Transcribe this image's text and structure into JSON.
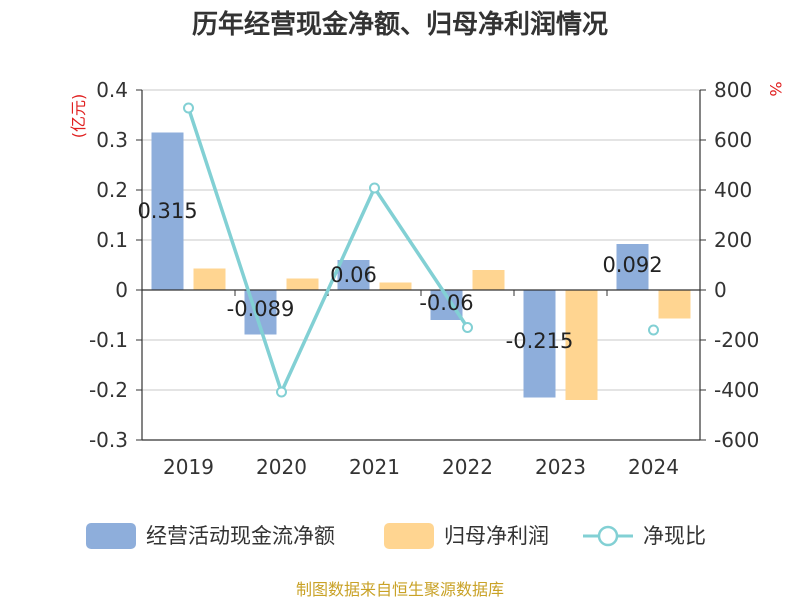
{
  "chart_data": {
    "type": "bar",
    "title": "历年经营现金净额、归母净利润情况",
    "categories": [
      "2019",
      "2020",
      "2021",
      "2022",
      "2023",
      "2024"
    ],
    "left_axis": {
      "unit": "(亿元)",
      "ylim": [
        -0.3,
        0.4
      ],
      "ticks": [
        "0.4",
        "0.3",
        "0.2",
        "0.1",
        "0",
        "-0.1",
        "-0.2",
        "-0.3"
      ],
      "tick_values": [
        0.4,
        0.3,
        0.2,
        0.1,
        0,
        -0.1,
        -0.2,
        -0.3
      ]
    },
    "right_axis": {
      "unit": "%",
      "ylim": [
        -600,
        800
      ],
      "ticks": [
        "800",
        "600",
        "400",
        "200",
        "0",
        "-200",
        "-400",
        "-600"
      ],
      "tick_values": [
        800,
        600,
        400,
        200,
        0,
        -200,
        -400,
        -600
      ]
    },
    "series": [
      {
        "name": "经营活动现金流净额",
        "kind": "bar",
        "axis": "left",
        "color": "#8eaedb",
        "values": [
          0.315,
          -0.089,
          0.06,
          -0.06,
          -0.215,
          0.092
        ],
        "labels": [
          "0.315",
          "-0.089",
          "0.06",
          "-0.06",
          "-0.215",
          "0.092"
        ]
      },
      {
        "name": "归母净利润",
        "kind": "bar",
        "axis": "left",
        "color": "#ffd591",
        "values": [
          0.043,
          0.023,
          0.015,
          0.04,
          -0.22,
          -0.057
        ]
      },
      {
        "name": "净现比",
        "kind": "line",
        "axis": "right",
        "color": "#82d0d4",
        "values": [
          728,
          -408,
          408,
          -150,
          null,
          -160
        ]
      }
    ],
    "grid": true,
    "legend_position": "bottom"
  },
  "source_note": "制图数据来自恒生聚源数据库",
  "colors": {
    "axis": "#333333",
    "grid": "#c8c8c8",
    "unit_text": "#e02020",
    "source_text": "#c9a227"
  }
}
